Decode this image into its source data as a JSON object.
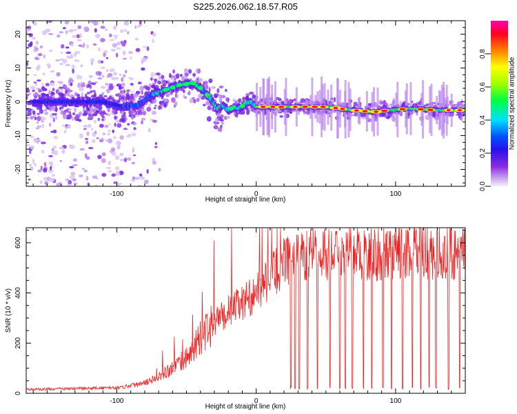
{
  "title": "S225.2026.062.18.57.R05",
  "chart_data": [
    {
      "type": "heatmap",
      "xlabel": "Height of straight line (km)",
      "ylabel": "Frequency (Hz)",
      "xlim": [
        -165,
        150
      ],
      "ylim": [
        -25,
        24
      ],
      "xticks": [
        -100,
        0,
        100
      ],
      "yticks": [
        -20,
        -10,
        0,
        10,
        20
      ],
      "ridge": {
        "x": [
          -150,
          -110,
          -95,
          -85,
          -75,
          -65,
          -55,
          -45,
          -38,
          -33,
          -28,
          -24,
          -20,
          -16,
          -12,
          -8,
          -4,
          0,
          10,
          30,
          50,
          70,
          85,
          95,
          110,
          130,
          148
        ],
        "y": [
          0,
          0,
          -1.5,
          -1,
          2,
          3.5,
          5,
          5.5,
          3.5,
          1,
          -2,
          -1,
          -2.5,
          -1.5,
          -2,
          -0.5,
          0,
          -1.5,
          -1.5,
          -1.5,
          -1.5,
          -2.5,
          -3,
          -2.5,
          -2,
          -2.5,
          -2.5
        ]
      }
    },
    {
      "type": "line",
      "xlabel": "Height of straight line (km)",
      "ylabel": "SNR (10 * v/v)",
      "xlim": [
        -165,
        150
      ],
      "ylim": [
        0,
        660
      ],
      "xticks": [
        -100,
        0,
        100
      ],
      "yticks": [
        0,
        200,
        400,
        600
      ],
      "envelope": {
        "x": [
          -165,
          -120,
          -100,
          -90,
          -80,
          -70,
          -60,
          -50,
          -40,
          -30,
          -20,
          -10,
          0,
          10,
          20,
          25,
          40,
          60,
          80,
          100,
          120,
          150
        ],
        "y": [
          15,
          20,
          22,
          30,
          45,
          70,
          100,
          140,
          220,
          280,
          330,
          360,
          400,
          460,
          520,
          540,
          550,
          560,
          555,
          560,
          565,
          555
        ]
      },
      "noise_fraction": 0.2,
      "dropouts": [
        25,
        28,
        31,
        37,
        44,
        53,
        60,
        64,
        69,
        77,
        83,
        91,
        97,
        105,
        112,
        118,
        124,
        129,
        138,
        146
      ]
    }
  ],
  "colorbar": {
    "label": "Normalized spectral amplitude",
    "range": [
      0,
      1
    ],
    "ticks": [
      "0.0",
      "0.2",
      "0.4",
      "0.6",
      "0.8"
    ],
    "tick_values": [
      0,
      0.2,
      0.4,
      0.6,
      0.8
    ]
  }
}
